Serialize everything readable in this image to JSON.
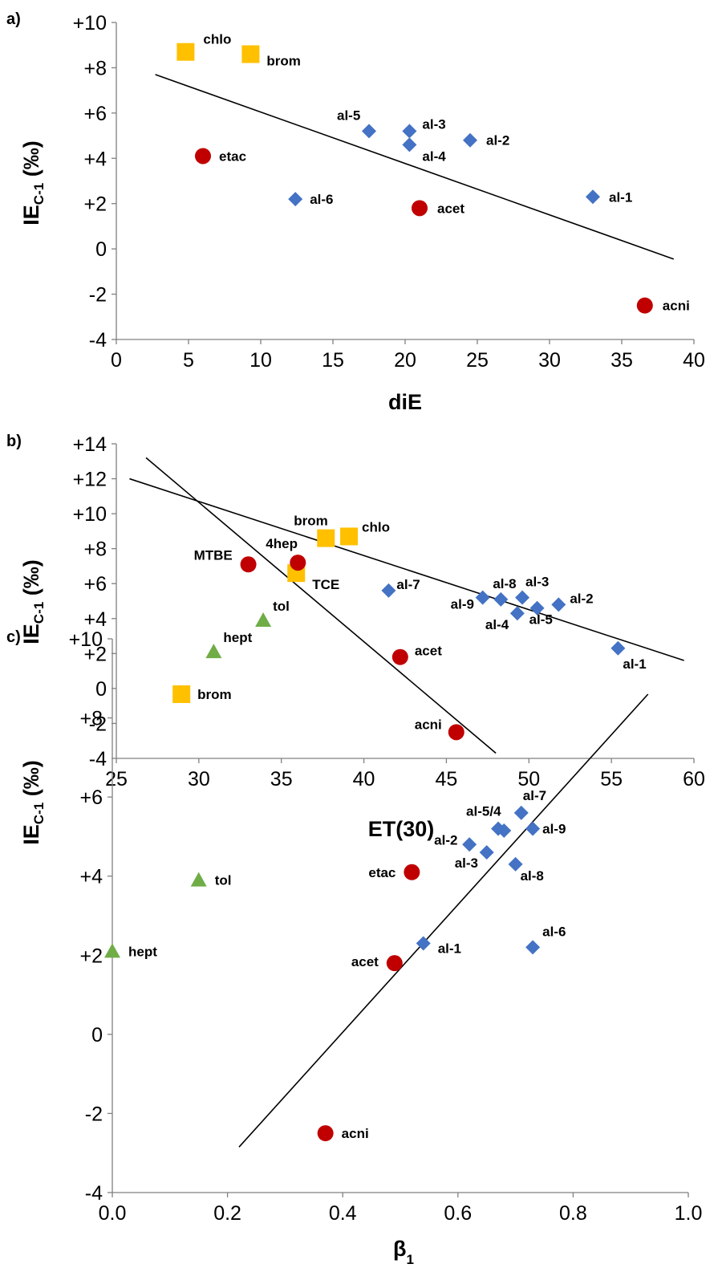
{
  "chart_data": [
    {
      "panel": "a)",
      "type": "scatter",
      "xlabel": "diE",
      "ylabel": "IE",
      "ylabel_sub": "C-1",
      "ylabel_unit": "(‰)",
      "xlim": [
        0,
        40
      ],
      "ylim": [
        -4,
        10
      ],
      "x_ticks": [
        "0",
        "5",
        "10",
        "15",
        "20",
        "25",
        "30",
        "35",
        "40"
      ],
      "y_ticks": [
        "-4",
        "-2",
        "0",
        "+2",
        "+4",
        "+6",
        "+8",
        "+10"
      ],
      "series": [
        {
          "marker": "square",
          "color": "#FFC000",
          "points": [
            {
              "x": 4.8,
              "y": 8.7,
              "label": "chlo"
            },
            {
              "x": 9.3,
              "y": 8.6,
              "label": "brom"
            }
          ]
        },
        {
          "marker": "circle",
          "color": "#C00000",
          "points": [
            {
              "x": 6.0,
              "y": 4.1,
              "label": "etac"
            },
            {
              "x": 21.0,
              "y": 1.8,
              "label": "acet"
            },
            {
              "x": 36.6,
              "y": -2.5,
              "label": "acni"
            }
          ]
        },
        {
          "marker": "diamond",
          "color": "#4472C4",
          "points": [
            {
              "x": 17.5,
              "y": 5.2,
              "label": "al-5"
            },
            {
              "x": 20.3,
              "y": 5.2,
              "label": "al-3"
            },
            {
              "x": 20.3,
              "y": 4.6,
              "label": "al-4"
            },
            {
              "x": 24.5,
              "y": 4.8,
              "label": "al-2"
            },
            {
              "x": 12.4,
              "y": 2.2,
              "label": "al-6"
            },
            {
              "x": 33.0,
              "y": 2.3,
              "label": "al-1"
            }
          ]
        }
      ],
      "fit_lines": [
        {
          "x": [
            2.7,
            38.6
          ],
          "y": [
            7.7,
            -0.45
          ]
        }
      ]
    },
    {
      "panel": "b)",
      "type": "scatter",
      "xlabel": "ET(30)",
      "ylabel": "IE",
      "ylabel_sub": "C-1",
      "ylabel_unit": "(‰)",
      "xlim": [
        25,
        60
      ],
      "ylim": [
        -4,
        14
      ],
      "x_ticks": [
        "25",
        "30",
        "35",
        "40",
        "45",
        "50",
        "55",
        "60"
      ],
      "y_ticks": [
        "-4",
        "-2",
        "0",
        "+2",
        "+4",
        "+6",
        "+8",
        "+10",
        "+12",
        "+14"
      ],
      "series": [
        {
          "marker": "square",
          "color": "#FFC000",
          "points": [
            {
              "x": 37.7,
              "y": 8.6,
              "label": "brom"
            },
            {
              "x": 39.1,
              "y": 8.7,
              "label": "chlo"
            },
            {
              "x": 35.9,
              "y": 6.6,
              "label": "TCE"
            }
          ]
        },
        {
          "marker": "circle",
          "color": "#C00000",
          "points": [
            {
              "x": 33.0,
              "y": 7.1,
              "label": "MTBE"
            },
            {
              "x": 36.0,
              "y": 7.2,
              "label": "4hep"
            },
            {
              "x": 42.2,
              "y": 1.8,
              "label": "acet"
            },
            {
              "x": 45.6,
              "y": -2.5,
              "label": "acni"
            }
          ]
        },
        {
          "marker": "triangle",
          "color": "#70AD47",
          "points": [
            {
              "x": 33.9,
              "y": 3.9,
              "label": "tol"
            },
            {
              "x": 30.9,
              "y": 2.1,
              "label": "hept"
            }
          ]
        },
        {
          "marker": "diamond",
          "color": "#4472C4",
          "points": [
            {
              "x": 41.5,
              "y": 5.6,
              "label": "al-7"
            },
            {
              "x": 47.2,
              "y": 5.2,
              "label": "al-9"
            },
            {
              "x": 48.3,
              "y": 5.1,
              "label": "al-8"
            },
            {
              "x": 49.6,
              "y": 5.2,
              "label": "al-3"
            },
            {
              "x": 49.3,
              "y": 4.3,
              "label": "al-4"
            },
            {
              "x": 50.5,
              "y": 4.6,
              "label": "al-5"
            },
            {
              "x": 51.8,
              "y": 4.8,
              "label": "al-2"
            },
            {
              "x": 55.4,
              "y": 2.3,
              "label": "al-1"
            }
          ]
        }
      ],
      "fit_lines": [
        {
          "x": [
            25.8,
            59.4
          ],
          "y": [
            12.0,
            1.6
          ]
        },
        {
          "x": [
            26.8,
            48.0
          ],
          "y": [
            13.2,
            -3.7
          ]
        }
      ]
    },
    {
      "panel": "c)",
      "type": "scatter",
      "xlabel": "β",
      "xlabel_sub": "1",
      "ylabel": "IE",
      "ylabel_sub": "C-1",
      "ylabel_unit": "(‰)",
      "xlim": [
        0.0,
        1.0
      ],
      "ylim": [
        -4,
        10
      ],
      "x_ticks": [
        "0.0",
        "0.2",
        "0.4",
        "0.6",
        "0.8",
        "1.0"
      ],
      "y_ticks": [
        "-4",
        "-2",
        "0",
        "+2",
        "+4",
        "+6",
        "+8",
        "+10"
      ],
      "series": [
        {
          "marker": "square",
          "color": "#FFC000",
          "points": [
            {
              "x": 0.12,
              "y": 8.6,
              "label": "brom"
            }
          ]
        },
        {
          "marker": "triangle",
          "color": "#70AD47",
          "points": [
            {
              "x": 0.15,
              "y": 3.9,
              "label": "tol"
            },
            {
              "x": 0.0,
              "y": 2.1,
              "label": "hept"
            }
          ]
        },
        {
          "marker": "circle",
          "color": "#C00000",
          "points": [
            {
              "x": 0.52,
              "y": 4.1,
              "label": "etac"
            },
            {
              "x": 0.49,
              "y": 1.8,
              "label": "acet"
            },
            {
              "x": 0.37,
              "y": -2.5,
              "label": "acni"
            }
          ]
        },
        {
          "marker": "diamond",
          "color": "#4472C4",
          "points": [
            {
              "x": 0.62,
              "y": 4.8,
              "label": "al-2"
            },
            {
              "x": 0.65,
              "y": 4.6,
              "label": "al-3"
            },
            {
              "x": 0.67,
              "y": 5.2,
              "label": "al-5/4"
            },
            {
              "x": 0.68,
              "y": 5.15,
              "label": ""
            },
            {
              "x": 0.71,
              "y": 5.6,
              "label": "al-7"
            },
            {
              "x": 0.73,
              "y": 5.2,
              "label": "al-9"
            },
            {
              "x": 0.7,
              "y": 4.3,
              "label": "al-8"
            },
            {
              "x": 0.54,
              "y": 2.3,
              "label": "al-1"
            },
            {
              "x": 0.73,
              "y": 2.2,
              "label": "al-6"
            }
          ]
        }
      ],
      "fit_lines": [
        {
          "x": [
            0.22,
            0.93
          ],
          "y": [
            -2.85,
            8.6
          ]
        }
      ]
    }
  ]
}
